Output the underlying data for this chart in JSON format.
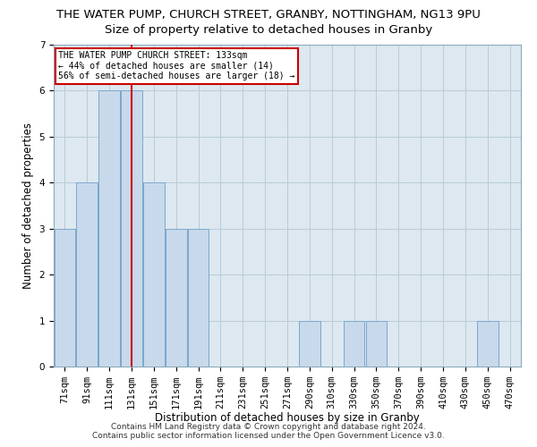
{
  "title": "THE WATER PUMP, CHURCH STREET, GRANBY, NOTTINGHAM, NG13 9PU",
  "subtitle": "Size of property relative to detached houses in Granby",
  "xlabel": "Distribution of detached houses by size in Granby",
  "ylabel": "Number of detached properties",
  "categories": [
    "71sqm",
    "91sqm",
    "111sqm",
    "131sqm",
    "151sqm",
    "171sqm",
    "191sqm",
    "211sqm",
    "231sqm",
    "251sqm",
    "271sqm",
    "290sqm",
    "310sqm",
    "330sqm",
    "350sqm",
    "370sqm",
    "390sqm",
    "410sqm",
    "430sqm",
    "450sqm",
    "470sqm"
  ],
  "values": [
    3,
    4,
    6,
    6,
    4,
    3,
    3,
    0,
    0,
    0,
    0,
    1,
    0,
    1,
    1,
    0,
    0,
    0,
    0,
    1,
    0
  ],
  "highlight_index": 3,
  "bar_color": "#c8d9eb",
  "bar_edge_color": "#7aa8cc",
  "highlight_line_color": "#cc0000",
  "ylim": [
    0,
    7
  ],
  "yticks": [
    0,
    1,
    2,
    3,
    4,
    5,
    6,
    7
  ],
  "annotation_text": "THE WATER PUMP CHURCH STREET: 133sqm\n← 44% of detached houses are smaller (14)\n56% of semi-detached houses are larger (18) →",
  "annotation_box_color": "#ffffff",
  "annotation_box_edge": "#cc0000",
  "footer": "Contains HM Land Registry data © Crown copyright and database right 2024.\nContains public sector information licensed under the Open Government Licence v3.0.",
  "bg_color": "#ffffff",
  "ax_bg_color": "#dde8f0",
  "grid_color": "#b8ccd8",
  "title_fontsize": 9.5,
  "subtitle_fontsize": 9.5,
  "axis_label_fontsize": 8.5,
  "tick_fontsize": 7.5,
  "footer_fontsize": 6.5
}
